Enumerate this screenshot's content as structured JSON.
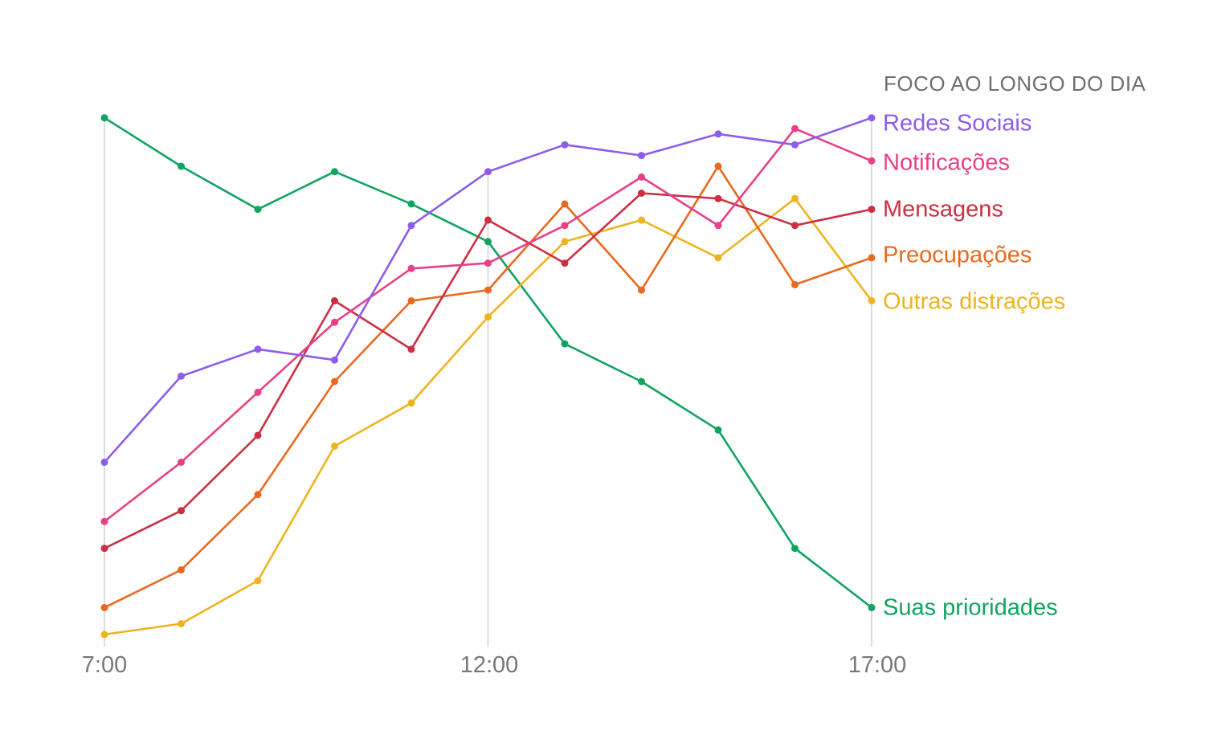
{
  "chart_data": {
    "type": "line",
    "title": "FOCO AO LONGO DO DIA",
    "xlabel": "",
    "ylabel": "",
    "x": [
      "7:00",
      "8:00",
      "9:00",
      "10:00",
      "11:00",
      "12:00",
      "13:00",
      "14:00",
      "15:00",
      "16:00",
      "17:00"
    ],
    "x_tick_labels": [
      "7:00",
      "12:00",
      "17:00"
    ],
    "x_tick_indices": [
      0,
      5,
      10
    ],
    "ylim": [
      0,
      100
    ],
    "grid": "vertical-lines-at-ticks-only",
    "gridline_color": "#d9d9d9",
    "legend_position": "right-of-plot-direct-labels",
    "title_color": "#6e6e73",
    "axis_label_color": "#76777b",
    "series": [
      {
        "name": "Redes Sociais",
        "color": "#8d5ce9",
        "values": [
          35,
          51,
          56,
          54,
          79,
          89,
          94,
          92,
          96,
          94,
          99
        ]
      },
      {
        "name": "Notificações",
        "color": "#e93f87",
        "values": [
          24,
          35,
          48,
          61,
          71,
          72,
          79,
          88,
          79,
          97,
          91
        ]
      },
      {
        "name": "Mensagens",
        "color": "#cb2f43",
        "values": [
          19,
          26,
          40,
          65,
          56,
          80,
          72,
          85,
          84,
          79,
          82
        ]
      },
      {
        "name": "Preocupações",
        "color": "#e8691f",
        "values": [
          8,
          15,
          29,
          50,
          65,
          67,
          83,
          67,
          90,
          68,
          73
        ]
      },
      {
        "name": "Outras distrações",
        "color": "#edb41f",
        "values": [
          3,
          5,
          13,
          38,
          46,
          62,
          76,
          80,
          73,
          84,
          65
        ]
      },
      {
        "name": "Suas prioridades",
        "color": "#11a361",
        "values": [
          99,
          90,
          82,
          89,
          83,
          76,
          57,
          50,
          41,
          19,
          8
        ]
      }
    ]
  }
}
